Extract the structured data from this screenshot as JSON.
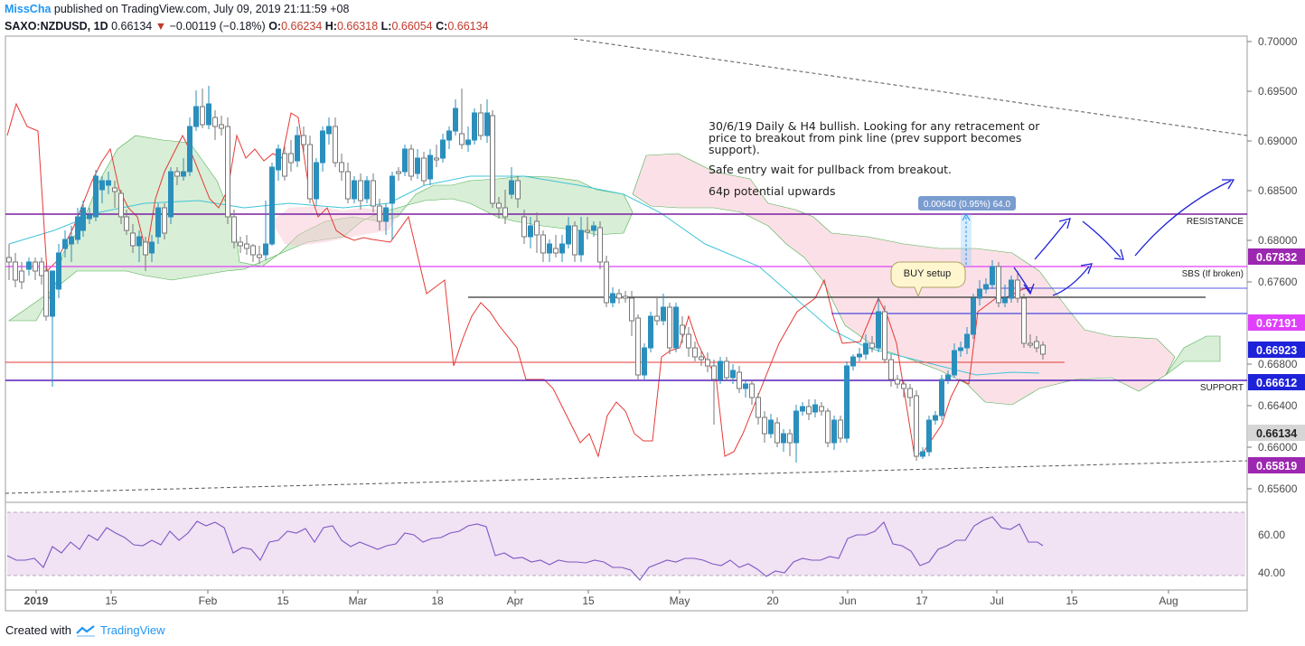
{
  "header": {
    "author": "MissCha",
    "published_text": "published on TradingView.com, July 09, 2019 21:11:59 +08",
    "symbol": "SAXO:NZDUSD, 1D",
    "last": "0.66134",
    "change_arrow": "▼",
    "change": "−0.00119 (−0.18%)",
    "o_label": "O:",
    "o": "0.66234",
    "h_label": "H:",
    "h": "0.66318",
    "l_label": "L:",
    "l": "0.66054",
    "c_label": "C:",
    "c": "0.66134"
  },
  "footer": {
    "created_with": "Created with",
    "brand": "TradingView"
  },
  "chart_data": {
    "type": "candlestick",
    "y_ticks": [
      "0.70000",
      "0.69500",
      "0.69000",
      "0.68500",
      "0.68000",
      "0.67600",
      "0.66800",
      "0.66400",
      "0.66000",
      "0.65600"
    ],
    "x_ticks": [
      "2019",
      "15",
      "Feb",
      "15",
      "Mar",
      "18",
      "Apr",
      "15",
      "May",
      "20",
      "Jun",
      "17",
      "Jul",
      "15",
      "Aug"
    ],
    "price_badges": [
      {
        "label": "0.67832",
        "color": "#9c27b0"
      },
      {
        "label": "0.67191",
        "color": "#e040fb"
      },
      {
        "label": "0.66923",
        "color": "#1e22d8"
      },
      {
        "label": "0.66612",
        "color": "#1e22d8"
      },
      {
        "label": "0.66134",
        "color": "#d6d6d6"
      },
      {
        "label": "0.65819",
        "color": "#9c27b0"
      }
    ],
    "line_labels": {
      "resistance": "RESISTANCE",
      "sbs": "SBS (If broken)",
      "support": "SUPPORT"
    },
    "annotation": {
      "lines": [
        "30/6/19 Daily & H4 bullish. Looking for any retracement or",
        "price to breakout from pink line (prev support becomes",
        "support).",
        "",
        "Safe entry wait for pullback from breakout.",
        "",
        "64p potential upwards"
      ]
    },
    "buy_setup": "BUY setup",
    "measure_label": "0.00640 (0.95%) 64.0",
    "rsi_ticks": [
      "60.00",
      "40.00"
    ],
    "colors": {
      "up": "#2a8fbd",
      "down": "#9a9a9a",
      "resistance": "#7b1fa2",
      "sbs": "#e040fb",
      "support": "#5a1fb8",
      "rsi": "#7e57c2",
      "conversion": "#e53935",
      "base": "#40c4d8"
    }
  }
}
